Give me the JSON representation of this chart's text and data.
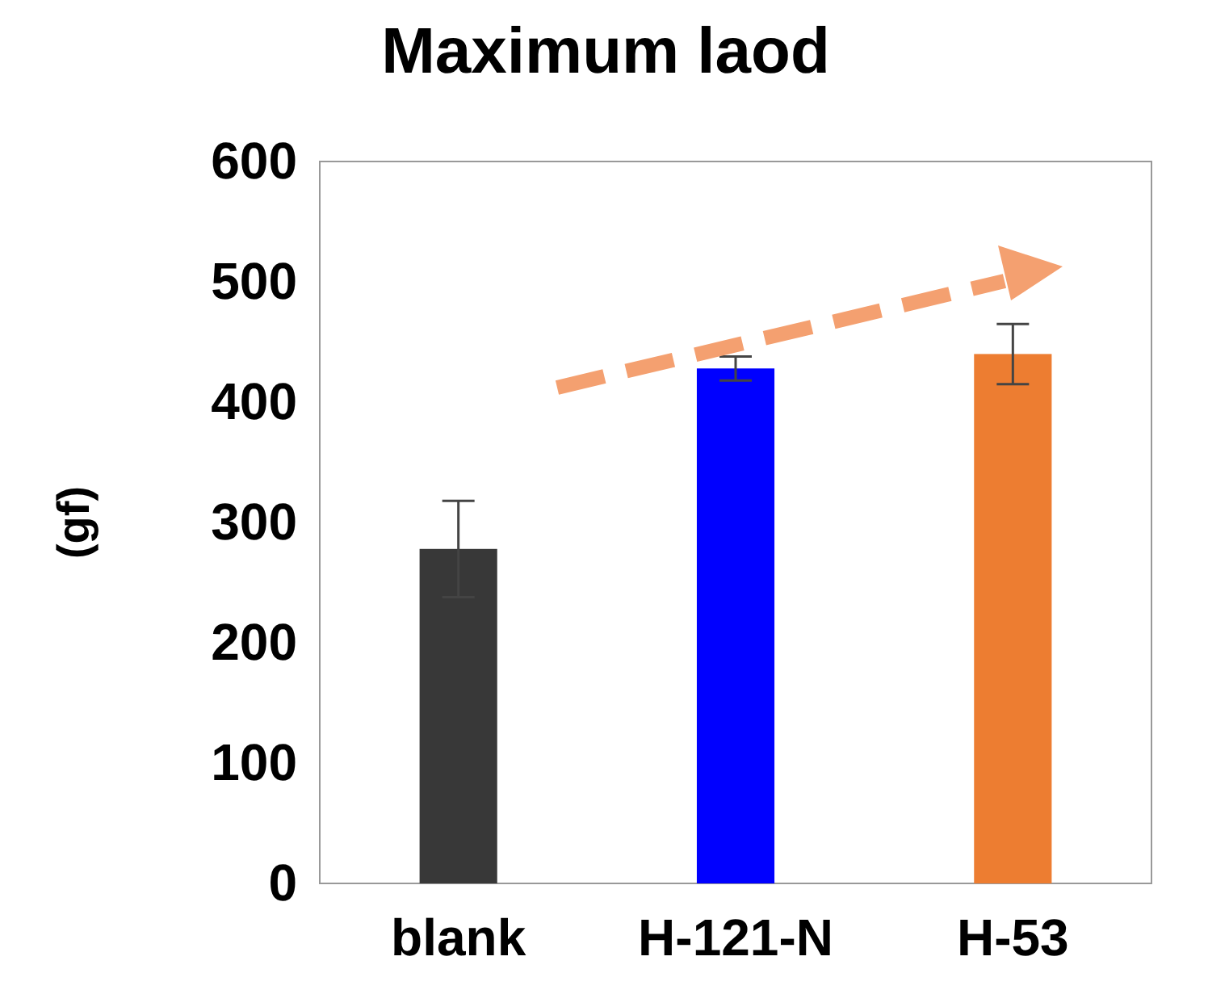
{
  "chart_data": {
    "type": "bar",
    "title": "Maximum laod",
    "ylabel": "(gf)",
    "categories": [
      "blank",
      "H-121-N",
      "H-53"
    ],
    "values": [
      278,
      428,
      440
    ],
    "colors": [
      "#383838",
      "#0000ff",
      "#ed7d31"
    ],
    "errors": [
      40,
      10,
      25
    ],
    "ylim": [
      0,
      600
    ],
    "yticks": [
      0,
      100,
      200,
      300,
      400,
      500,
      600
    ],
    "grid": false
  }
}
